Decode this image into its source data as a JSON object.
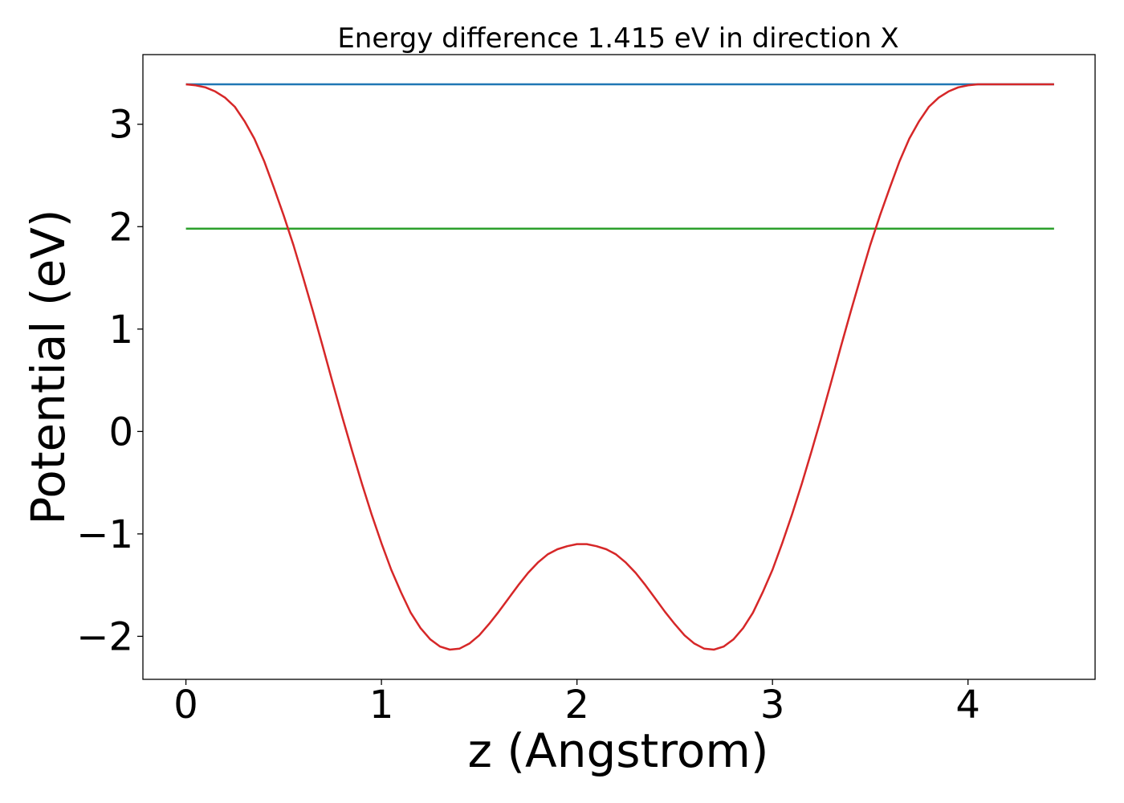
{
  "chart_data": {
    "type": "line",
    "title": "Energy difference 1.415 eV in direction X",
    "xlabel": "z (Angstrom)",
    "ylabel": "Potential (eV)",
    "xlim": [
      -0.22,
      4.65
    ],
    "ylim": [
      -2.42,
      3.68
    ],
    "xticks": [
      0,
      1,
      2,
      3,
      4
    ],
    "xtick_labels": [
      "0",
      "1",
      "2",
      "3",
      "4"
    ],
    "yticks": [
      -2,
      -1,
      0,
      1,
      2,
      3
    ],
    "ytick_labels": [
      "−2",
      "−1",
      "0",
      "1",
      "2",
      "3"
    ],
    "grid": false,
    "series": [
      {
        "color": "#d62728",
        "x": [
          0,
          0.05,
          0.1,
          0.15,
          0.2,
          0.25,
          0.3,
          0.35,
          0.4,
          0.45,
          0.5,
          0.55,
          0.6,
          0.65,
          0.7,
          0.75,
          0.8,
          0.85,
          0.9,
          0.95,
          1.0,
          1.05,
          1.1,
          1.15,
          1.2,
          1.25,
          1.3,
          1.35,
          1.4,
          1.45,
          1.5,
          1.55,
          1.6,
          1.65,
          1.7,
          1.75,
          1.8,
          1.85,
          1.9,
          1.95,
          2.0,
          2.05,
          2.1,
          2.15,
          2.2,
          2.25,
          2.3,
          2.35,
          2.4,
          2.45,
          2.5,
          2.55,
          2.6,
          2.65,
          2.7,
          2.75,
          2.8,
          2.85,
          2.9,
          2.95,
          3.0,
          3.05,
          3.1,
          3.15,
          3.2,
          3.25,
          3.3,
          3.35,
          3.4,
          3.45,
          3.5,
          3.55,
          3.6,
          3.65,
          3.7,
          3.75,
          3.8,
          3.85,
          3.9,
          3.95,
          4.0,
          4.05,
          4.1,
          4.15,
          4.2,
          4.25,
          4.3,
          4.35,
          4.4,
          4.44
        ],
        "y": [
          3.39,
          3.38,
          3.36,
          3.32,
          3.26,
          3.17,
          3.03,
          2.86,
          2.64,
          2.38,
          2.11,
          1.82,
          1.5,
          1.17,
          0.83,
          0.48,
          0.14,
          -0.19,
          -0.51,
          -0.81,
          -1.09,
          -1.35,
          -1.57,
          -1.77,
          -1.92,
          -2.03,
          -2.1,
          -2.13,
          -2.12,
          -2.07,
          -1.99,
          -1.88,
          -1.76,
          -1.63,
          -1.5,
          -1.38,
          -1.28,
          -1.2,
          -1.15,
          -1.12,
          -1.1,
          -1.1,
          -1.12,
          -1.15,
          -1.2,
          -1.28,
          -1.38,
          -1.5,
          -1.63,
          -1.76,
          -1.88,
          -1.99,
          -2.07,
          -2.12,
          -2.13,
          -2.1,
          -2.03,
          -1.92,
          -1.77,
          -1.57,
          -1.35,
          -1.09,
          -0.81,
          -0.51,
          -0.19,
          0.14,
          0.48,
          0.83,
          1.17,
          1.5,
          1.82,
          2.11,
          2.38,
          2.64,
          2.86,
          3.03,
          3.17,
          3.26,
          3.32,
          3.36,
          3.38,
          3.39,
          3.39,
          3.39,
          3.39,
          3.39,
          3.39,
          3.39,
          3.39,
          3.39
        ]
      },
      {
        "color": "#1f77b4",
        "x": [
          0,
          4.44
        ],
        "y": [
          3.39,
          3.39
        ]
      },
      {
        "color": "#2ca02c",
        "x": [
          0,
          4.44
        ],
        "y": [
          1.98,
          1.98
        ]
      }
    ]
  }
}
